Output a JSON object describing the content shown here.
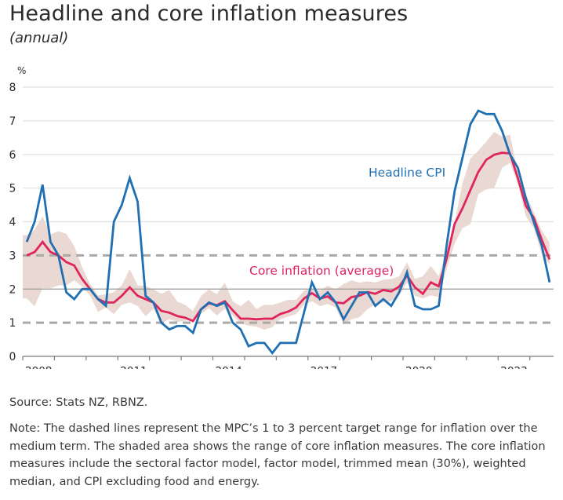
{
  "header": {
    "title": "Headline and core inflation measures",
    "subtitle": "(annual)"
  },
  "footer": {
    "source": "Source: Stats NZ, RBNZ.",
    "note": "Note: The dashed lines represent the MPC’s 1 to 3 percent target range for inflation over the medium term. The shaded area shows the range of core inflation measures. The core inflation measures include the sectoral factor model, factor model, trimmed mean (30%), weighted median, and CPI excluding food and energy."
  },
  "colors": {
    "headline": "#1f6fb2",
    "core": "#e0245e",
    "band": "#ead9d2",
    "target_dashes": "#a9a9a9",
    "grid": "#e2e2e2",
    "two_percent_line": "#9a9a9a",
    "axis": "#7a7a7a"
  },
  "chart_data": {
    "type": "line",
    "title": "Headline and core inflation measures",
    "subtitle": "(annual)",
    "ylabel": "%",
    "xlabel": "",
    "ylim": [
      0,
      8
    ],
    "yticks": [
      "0",
      "1",
      "2",
      "3",
      "4",
      "5",
      "6",
      "7",
      "8"
    ],
    "x_start": "2008 Q1",
    "x_end": "2024 Q3",
    "frequency": "quarterly",
    "xtick_labels": [
      "2008",
      "2011",
      "2014",
      "2017",
      "2020",
      "2023"
    ],
    "xtick_label_years": [
      2008,
      2011,
      2014,
      2017,
      2020,
      2023
    ],
    "x_axis_years": [
      2008,
      2024.75
    ],
    "grid": true,
    "reference_lines": [
      {
        "value": 1,
        "style": "dashed",
        "meaning": "target range lower bound"
      },
      {
        "value": 2,
        "style": "solid"
      },
      {
        "value": 3,
        "style": "dashed",
        "meaning": "target range upper bound"
      }
    ],
    "series": [
      {
        "name": "Headline CPI",
        "label_text": "Headline CPI",
        "values": [
          3.4,
          4.0,
          5.1,
          3.4,
          3.0,
          1.9,
          1.7,
          2.0,
          2.0,
          1.7,
          1.5,
          4.0,
          4.5,
          5.3,
          4.6,
          1.8,
          1.6,
          1.0,
          0.8,
          0.9,
          0.9,
          0.7,
          1.4,
          1.6,
          1.5,
          1.6,
          1.0,
          0.8,
          0.3,
          0.4,
          0.4,
          0.1,
          0.4,
          0.4,
          0.4,
          1.3,
          2.2,
          1.7,
          1.9,
          1.6,
          1.1,
          1.5,
          1.9,
          1.9,
          1.5,
          1.7,
          1.5,
          1.9,
          2.5,
          1.5,
          1.4,
          1.4,
          1.5,
          3.3,
          4.9,
          5.9,
          6.9,
          7.3,
          7.2,
          7.2,
          6.7,
          6.0,
          5.6,
          4.7,
          4.0,
          3.3,
          2.2
        ]
      },
      {
        "name": "Core inflation (average)",
        "label_text": "Core inflation (average)",
        "values": [
          3.0,
          3.1,
          3.4,
          3.1,
          3.0,
          2.8,
          2.7,
          2.3,
          2.0,
          1.7,
          1.6,
          1.6,
          1.8,
          2.05,
          1.8,
          1.7,
          1.6,
          1.35,
          1.3,
          1.2,
          1.15,
          1.05,
          1.4,
          1.58,
          1.52,
          1.64,
          1.37,
          1.12,
          1.12,
          1.1,
          1.12,
          1.12,
          1.26,
          1.33,
          1.45,
          1.72,
          1.88,
          1.72,
          1.78,
          1.6,
          1.58,
          1.76,
          1.8,
          1.91,
          1.86,
          1.97,
          1.93,
          2.07,
          2.4,
          2.05,
          1.86,
          2.2,
          2.08,
          2.9,
          3.93,
          4.4,
          4.94,
          5.48,
          5.84,
          5.99,
          6.05,
          6.03,
          5.29,
          4.47,
          4.12,
          3.47,
          2.88
        ]
      },
      {
        "name": "Range of core inflation measures",
        "type": "band",
        "upper": [
          3.6,
          3.77,
          4.16,
          3.62,
          3.72,
          3.64,
          3.27,
          2.65,
          2.15,
          1.81,
          1.85,
          1.91,
          2.11,
          2.59,
          2.11,
          2.09,
          1.99,
          1.86,
          1.97,
          1.63,
          1.53,
          1.35,
          1.8,
          1.99,
          1.85,
          2.19,
          1.64,
          1.49,
          1.68,
          1.41,
          1.53,
          1.53,
          1.6,
          1.68,
          1.68,
          1.95,
          2.03,
          1.95,
          2.1,
          1.99,
          2.15,
          2.26,
          2.19,
          2.23,
          2.2,
          2.28,
          2.3,
          2.38,
          2.79,
          2.3,
          2.38,
          2.69,
          2.38,
          3.12,
          3.97,
          5.14,
          5.88,
          6.11,
          6.38,
          6.67,
          6.53,
          6.59,
          5.44,
          4.83,
          4.28,
          3.74,
          3.39
        ],
        "lower": [
          1.72,
          1.49,
          2.03,
          2.02,
          2.11,
          2.11,
          2.26,
          2.07,
          1.81,
          1.32,
          1.45,
          1.26,
          1.53,
          1.6,
          1.5,
          1.19,
          1.41,
          0.98,
          1.1,
          1.02,
          1.06,
          1.09,
          1.27,
          1.43,
          1.22,
          1.41,
          1.22,
          0.98,
          0.91,
          0.88,
          0.79,
          0.87,
          1.1,
          1.18,
          1.26,
          1.53,
          1.64,
          1.49,
          1.56,
          1.45,
          0.95,
          1.1,
          1.16,
          1.4,
          1.55,
          1.6,
          1.64,
          1.8,
          2.2,
          1.8,
          1.72,
          1.81,
          1.76,
          2.6,
          3.35,
          3.81,
          3.93,
          4.82,
          4.96,
          5.0,
          5.6,
          5.75,
          5.13,
          4.16,
          3.81,
          3.04,
          2.73
        ]
      }
    ]
  }
}
